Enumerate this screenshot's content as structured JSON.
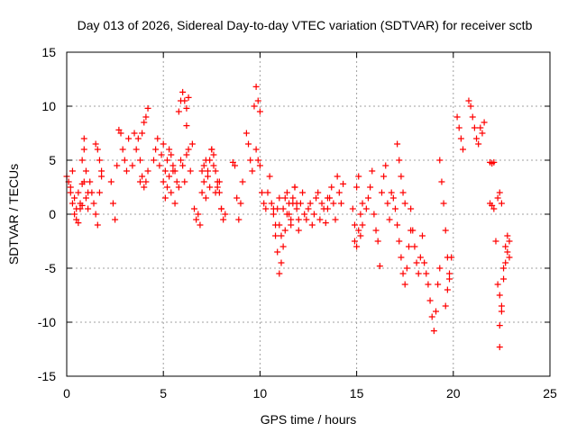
{
  "chart_data": {
    "type": "scatter",
    "title": "Day 013 of 2026, Sidereal Day-to-day VTEC variation (SDTVAR) for receiver sctb",
    "xlabel": "GPS time / hours",
    "ylabel": "SDTVAR / TECUs",
    "xlim": [
      0,
      25
    ],
    "ylim": [
      -15,
      15
    ],
    "xticks": [
      0,
      5,
      10,
      15,
      20,
      25
    ],
    "yticks": [
      -15,
      -10,
      -5,
      0,
      5,
      10,
      15
    ],
    "grid": true,
    "marker": "+",
    "color": "#ff0000",
    "series": [
      {
        "name": "SDTVAR",
        "segments": [
          {
            "x": [
              0.0,
              0.1,
              0.2,
              0.3,
              0.4,
              0.5,
              0.6,
              0.7,
              0.8,
              0.9,
              1.0,
              1.1
            ],
            "y": [
              3.5,
              3.0,
              2.5,
              4.0,
              1.5,
              0.5,
              2.0,
              1.0,
              2.8,
              6.0,
              1.5,
              0.5
            ]
          },
          {
            "x": [
              0.2,
              0.3,
              0.4,
              0.5,
              0.6,
              0.7,
              0.8,
              0.9
            ],
            "y": [
              2.0,
              1.0,
              0.0,
              -0.5,
              -0.8,
              0.5,
              0.8,
              3.0
            ]
          },
          {
            "x": [
              0.8,
              0.9,
              1.0,
              1.1
            ],
            "y": [
              5.0,
              7.0,
              4.0,
              2.0
            ]
          },
          {
            "x": [
              1.2,
              1.3,
              1.4,
              1.5,
              1.6,
              1.7,
              1.8
            ],
            "y": [
              3.0,
              2.0,
              1.0,
              0.0,
              -1.0,
              2.0,
              3.5
            ]
          },
          {
            "x": [
              1.5,
              1.6,
              1.7,
              1.8
            ],
            "y": [
              6.5,
              6.0,
              5.0,
              4.0
            ]
          },
          {
            "x": [
              2.3,
              2.4,
              2.5
            ],
            "y": [
              3.0,
              1.0,
              -0.5
            ]
          },
          {
            "x": [
              2.6,
              2.7,
              2.8,
              2.9,
              3.0,
              3.1,
              3.2
            ],
            "y": [
              4.5,
              7.8,
              7.5,
              6.0,
              5.0,
              4.0,
              7.0
            ]
          },
          {
            "x": [
              3.4,
              3.5,
              3.6,
              3.7,
              3.8,
              3.9,
              4.0,
              4.1,
              4.2
            ],
            "y": [
              4.5,
              7.5,
              6.0,
              7.0,
              5.0,
              7.5,
              8.5,
              9.0,
              9.8
            ]
          },
          {
            "x": [
              3.8,
              3.9,
              4.0,
              4.1,
              4.2
            ],
            "y": [
              3.0,
              3.5,
              2.5,
              3.0,
              4.0
            ]
          },
          {
            "x": [
              4.5,
              4.6,
              4.7,
              4.8,
              4.9,
              5.0,
              5.1,
              5.2,
              5.3,
              5.4,
              5.5
            ],
            "y": [
              5.0,
              6.0,
              7.0,
              4.5,
              5.5,
              6.5,
              4.0,
              5.0,
              6.0,
              5.5,
              4.5
            ]
          },
          {
            "x": [
              5.0,
              5.1,
              5.2,
              5.3,
              5.4,
              5.5,
              5.6
            ],
            "y": [
              3.0,
              1.5,
              2.5,
              3.5,
              2.0,
              4.0,
              1.0
            ]
          },
          {
            "x": [
              5.6,
              5.7,
              5.8,
              5.9,
              6.0,
              6.1,
              6.2,
              6.3,
              6.4,
              6.5
            ],
            "y": [
              4.0,
              3.0,
              2.5,
              5.0,
              4.5,
              3.0,
              5.5,
              6.0,
              4.0,
              6.5
            ]
          },
          {
            "x": [
              5.8,
              5.9,
              6.0,
              6.1,
              6.2,
              6.3
            ],
            "y": [
              9.5,
              10.5,
              11.3,
              10.5,
              9.8,
              10.8
            ]
          },
          {
            "x": [
              6.2
            ],
            "y": [
              8.2
            ]
          },
          {
            "x": [
              6.6,
              6.7,
              6.8,
              6.9,
              7.0,
              7.1,
              7.2,
              7.3,
              7.4,
              7.5,
              7.6,
              7.7,
              7.8,
              7.9
            ],
            "y": [
              0.5,
              -0.5,
              0.0,
              -1.0,
              2.0,
              3.0,
              1.5,
              4.0,
              5.0,
              6.0,
              4.5,
              2.0,
              2.5,
              3.0
            ]
          },
          {
            "x": [
              7.0,
              7.1,
              7.2,
              7.3,
              7.4,
              7.5,
              7.6,
              7.7,
              7.8,
              7.9,
              8.0
            ],
            "y": [
              4.0,
              4.5,
              5.0,
              3.5,
              2.5,
              6.0,
              5.5,
              4.0,
              3.0,
              2.0,
              0.5
            ]
          },
          {
            "x": [
              8.0,
              8.1,
              8.2
            ],
            "y": [
              0.5,
              -0.5,
              0.0
            ]
          },
          {
            "x": [
              8.6,
              8.7,
              8.8,
              8.9,
              9.0,
              9.1
            ],
            "y": [
              4.8,
              4.5,
              1.5,
              -0.5,
              1.0,
              3.0
            ]
          },
          {
            "x": [
              9.3,
              9.4,
              9.5,
              9.6,
              9.7,
              9.8,
              9.9,
              10.0
            ],
            "y": [
              7.5,
              6.5,
              5.0,
              4.0,
              10.0,
              11.8,
              10.5,
              9.5
            ]
          },
          {
            "x": [
              9.8,
              9.9,
              10.0,
              10.1,
              10.2,
              10.3,
              10.4,
              10.5,
              10.6,
              10.7,
              10.8,
              10.9,
              11.0
            ],
            "y": [
              6.0,
              5.0,
              4.5,
              2.0,
              1.0,
              0.5,
              2.0,
              3.5,
              1.0,
              0.0,
              -1.0,
              0.5,
              1.5
            ]
          },
          {
            "x": [
              10.7,
              10.8,
              10.9,
              11.0,
              11.1,
              11.2,
              11.3,
              11.4,
              11.5,
              11.6,
              11.7,
              11.8,
              11.9,
              12.0
            ],
            "y": [
              0.5,
              -2.0,
              -3.5,
              -5.5,
              -4.5,
              -3.0,
              -1.5,
              0.0,
              1.0,
              -0.5,
              1.5,
              2.5,
              1.0,
              -0.5
            ]
          },
          {
            "x": [
              11.0,
              11.1,
              11.2,
              11.3,
              11.4,
              11.5,
              11.6,
              11.7,
              11.8,
              11.9,
              12.0,
              12.1,
              12.2,
              12.3
            ],
            "y": [
              -1.0,
              -2.0,
              0.5,
              1.5,
              2.0,
              0.0,
              -1.0,
              1.0,
              2.5,
              0.5,
              -1.5,
              1.0,
              2.0,
              0.0
            ]
          },
          {
            "x": [
              12.4,
              12.5,
              12.6,
              12.7,
              12.8,
              12.9,
              13.0,
              13.1,
              13.2,
              13.3,
              13.4,
              13.5
            ],
            "y": [
              -0.5,
              0.5,
              1.0,
              -1.0,
              0.0,
              1.5,
              2.0,
              -0.5,
              1.0,
              0.5,
              -0.8,
              1.5
            ]
          },
          {
            "x": [
              13.5,
              13.6,
              13.7,
              13.8,
              13.9,
              14.0,
              14.1,
              14.2,
              14.3
            ],
            "y": [
              0.5,
              1.5,
              2.5,
              1.0,
              -0.5,
              3.5,
              2.0,
              1.0,
              2.8
            ]
          },
          {
            "x": [
              14.8,
              14.9,
              15.0,
              15.1,
              15.2,
              15.3
            ],
            "y": [
              0.5,
              -1.0,
              2.5,
              3.5,
              -2.0,
              -1.0
            ]
          },
          {
            "x": [
              14.9,
              15.0,
              15.1,
              15.2,
              15.3
            ],
            "y": [
              -2.5,
              -3.0,
              -1.5,
              0.0,
              1.0
            ]
          },
          {
            "x": [
              15.5,
              15.6,
              15.7,
              15.8,
              15.9,
              16.0,
              16.1,
              16.2,
              16.3,
              16.4,
              16.5,
              16.6,
              16.7
            ],
            "y": [
              0.5,
              1.5,
              2.5,
              4.0,
              0.0,
              -1.5,
              -2.5,
              -4.8,
              2.0,
              3.5,
              4.5,
              1.0,
              -0.5
            ]
          },
          {
            "x": [
              16.8,
              16.9,
              17.0,
              17.1,
              17.2,
              17.3,
              17.4,
              17.5,
              17.6,
              17.7,
              17.8
            ],
            "y": [
              2.0,
              1.5,
              0.5,
              -1.0,
              -2.5,
              -4.0,
              -5.5,
              -6.5,
              -5.0,
              -3.0,
              -1.5
            ]
          },
          {
            "x": [
              17.1,
              17.2,
              17.3,
              17.4,
              17.5
            ],
            "y": [
              6.5,
              5.0,
              3.5,
              2.0,
              1.0
            ]
          },
          {
            "x": [
              17.8,
              17.9,
              18.0,
              18.1,
              18.2,
              18.3,
              18.4
            ],
            "y": [
              0.5,
              -1.5,
              -3.0,
              -4.5,
              -5.5,
              -4.0,
              -2.0
            ]
          },
          {
            "x": [
              18.5,
              18.6,
              18.7,
              18.8,
              18.9,
              19.0,
              19.1,
              19.2,
              19.3
            ],
            "y": [
              -4.5,
              -5.5,
              -6.5,
              -8.0,
              -9.5,
              -10.8,
              -9.0,
              -6.5,
              -5.0
            ]
          },
          {
            "x": [
              19.3,
              19.4,
              19.5,
              19.6,
              19.7,
              19.8
            ],
            "y": [
              5.0,
              3.0,
              1.0,
              -1.5,
              -4.0,
              -6.0
            ]
          },
          {
            "x": [
              19.6,
              19.7,
              19.8,
              19.9
            ],
            "y": [
              -8.5,
              -7.0,
              -5.5,
              -4.0
            ]
          },
          {
            "x": [
              20.2,
              20.3,
              20.4,
              20.5
            ],
            "y": [
              9.0,
              8.0,
              7.0,
              6.0
            ]
          },
          {
            "x": [
              20.8,
              20.9,
              21.0,
              21.1
            ],
            "y": [
              10.5,
              10.0,
              9.0,
              8.0
            ]
          },
          {
            "x": [
              21.2,
              21.3,
              21.4,
              21.5,
              21.6
            ],
            "y": [
              7.0,
              6.5,
              8.0,
              7.5,
              8.5
            ]
          },
          {
            "x": [
              21.9,
              22.0,
              22.1
            ],
            "y": [
              4.8,
              4.7,
              4.8
            ]
          },
          {
            "x": [
              21.9,
              22.0,
              22.1
            ],
            "y": [
              1.0,
              0.8,
              0.5
            ]
          },
          {
            "x": [
              22.3,
              22.4,
              22.5
            ],
            "y": [
              1.5,
              2.0,
              1.0
            ]
          },
          {
            "x": [
              22.2,
              22.3,
              22.4,
              22.5,
              22.6,
              22.7,
              22.8,
              22.9
            ],
            "y": [
              -2.5,
              -6.5,
              -7.5,
              -9.0,
              -5.0,
              -3.0,
              -2.0,
              -4.0
            ]
          },
          {
            "x": [
              22.4,
              22.5,
              22.6,
              22.7,
              22.8,
              22.9
            ],
            "y": [
              -10.3,
              -8.5,
              -6.0,
              -4.5,
              -3.5,
              -2.5
            ]
          },
          {
            "x": [
              22.4
            ],
            "y": [
              -12.3
            ]
          }
        ]
      }
    ]
  }
}
